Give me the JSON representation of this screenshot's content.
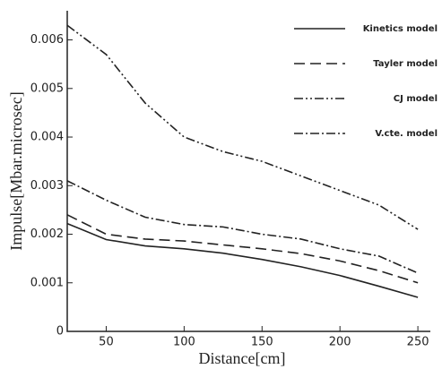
{
  "chart_data": {
    "type": "line",
    "x_label": "Distance[cm]",
    "y_label": "Impulse[Mbar.microsec]",
    "x": [
      25,
      50,
      75,
      100,
      125,
      150,
      175,
      200,
      225,
      250
    ],
    "series": [
      {
        "name": "Kinetics model",
        "color": "#222222",
        "style": "solid",
        "values": [
          0.00222,
          0.00189,
          0.00176,
          0.0017,
          0.00161,
          0.00148,
          0.00133,
          0.00115,
          0.00093,
          0.0007
        ]
      },
      {
        "name": "Tayler model",
        "color": "#222222",
        "style": "dashed",
        "values": [
          0.0024,
          0.002,
          0.0019,
          0.00186,
          0.00178,
          0.0017,
          0.0016,
          0.00145,
          0.00125,
          0.001
        ]
      },
      {
        "name": "CJ model",
        "color": "#222222",
        "style": "dash-dot-dot",
        "values": [
          0.0063,
          0.0057,
          0.0047,
          0.004,
          0.0037,
          0.0035,
          0.0032,
          0.0029,
          0.0026,
          0.0021
        ]
      },
      {
        "name": "V.cte. model",
        "color": "#222222",
        "style": "dash-dot",
        "values": [
          0.0031,
          0.0027,
          0.00235,
          0.0022,
          0.00215,
          0.002,
          0.0019,
          0.0017,
          0.00155,
          0.0012
        ]
      }
    ],
    "xlim": [
      25,
      258
    ],
    "xticks": [
      50,
      100,
      150,
      200,
      250
    ],
    "ylim": [
      0,
      0.0066
    ],
    "yticks": [
      0,
      0.001,
      0.002,
      0.003,
      0.004,
      0.005,
      0.006
    ],
    "legend": "upper right",
    "grid": false
  }
}
